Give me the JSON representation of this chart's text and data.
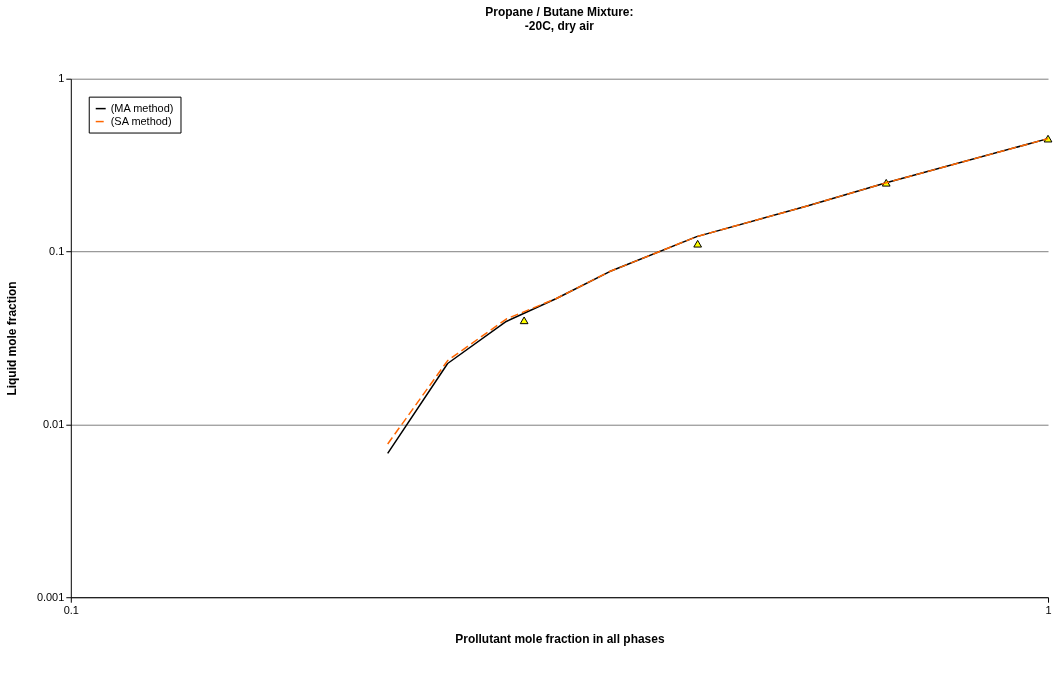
{
  "chart_data": {
    "type": "line",
    "title": "Propane / Butane Mixture:\n-20C, dry air",
    "xlabel": "Prollutant mole fraction in all phases",
    "ylabel": "Liquid mole fraction",
    "log": "xy",
    "xlim": [
      0.1,
      1
    ],
    "xticks": [
      0.1,
      1
    ],
    "ylim": [
      0.001,
      1
    ],
    "yticks": [
      0.001,
      0.01,
      0.1,
      1
    ],
    "grid": "y",
    "legend": "top left",
    "series": [
      {
        "name": "(MA method)",
        "color": "#000000",
        "line_style": "solid",
        "marker": "none",
        "x": [
          0.211,
          0.243,
          0.279,
          0.314,
          0.356,
          0.437,
          0.568,
          0.683,
          1.0
        ],
        "values": [
          0.0068,
          0.0225,
          0.0394,
          0.0535,
          0.0766,
          0.122,
          0.184,
          0.25,
          0.45
        ]
      },
      {
        "type": "scatter",
        "color": "#ffff00",
        "marker": "triangle",
        "x": [
          0.291,
          0.438,
          0.683,
          1.0
        ],
        "values": [
          0.04,
          0.111,
          0.25,
          0.45
        ]
      },
      {
        "name": "(SA method)",
        "color": "#ff6600",
        "line_style": "dashed",
        "marker": "none",
        "x": [
          0.211,
          0.243,
          0.279,
          0.314,
          0.356,
          0.437,
          0.568,
          0.683,
          1.0
        ],
        "values": [
          0.0077,
          0.0234,
          0.0407,
          0.0535,
          0.0766,
          0.122,
          0.184,
          0.25,
          0.45
        ]
      }
    ]
  }
}
